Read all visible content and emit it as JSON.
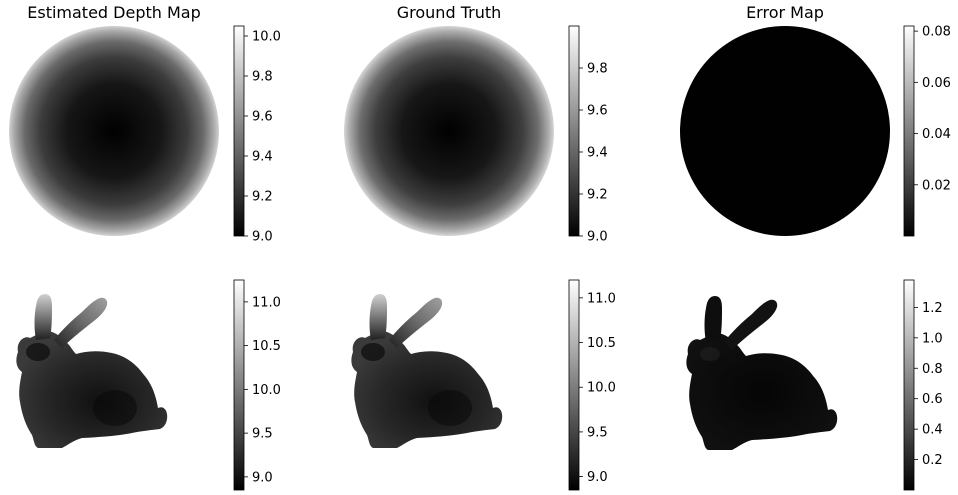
{
  "figure": {
    "colormap": "gray",
    "background": "#ffffff"
  },
  "chart_data": [
    {
      "type": "heatmap",
      "title": "Estimated Depth Map",
      "shape": "sphere",
      "colorbar": {
        "min": 9.0,
        "max": 10.05,
        "ticks": [
          9.0,
          9.2,
          9.4,
          9.6,
          9.8,
          10.0
        ],
        "tick_labels": [
          "9.0",
          "9.2",
          "9.4",
          "9.6",
          "9.8",
          "10.0"
        ]
      }
    },
    {
      "type": "heatmap",
      "title": "Ground Truth",
      "shape": "sphere",
      "colorbar": {
        "min": 9.0,
        "max": 10.0,
        "ticks": [
          9.0,
          9.2,
          9.4,
          9.6,
          9.8
        ],
        "tick_labels": [
          "9.0",
          "9.2",
          "9.4",
          "9.6",
          "9.8"
        ]
      }
    },
    {
      "type": "heatmap",
      "title": "Error Map",
      "shape": "sphere-error",
      "colorbar": {
        "min": 0.0,
        "max": 0.082,
        "ticks": [
          0.02,
          0.04,
          0.06,
          0.08
        ],
        "tick_labels": [
          "0.02",
          "0.04",
          "0.06",
          "0.08"
        ]
      }
    },
    {
      "type": "heatmap",
      "title": "",
      "shape": "bunny",
      "colorbar": {
        "min": 8.85,
        "max": 11.25,
        "ticks": [
          9.0,
          9.5,
          10.0,
          10.5,
          11.0
        ],
        "tick_labels": [
          "9.0",
          "9.5",
          "10.0",
          "10.5",
          "11.0"
        ]
      }
    },
    {
      "type": "heatmap",
      "title": "",
      "shape": "bunny",
      "colorbar": {
        "min": 8.85,
        "max": 11.2,
        "ticks": [
          9.0,
          9.5,
          10.0,
          10.5,
          11.0
        ],
        "tick_labels": [
          "9.0",
          "9.5",
          "10.0",
          "10.5",
          "11.0"
        ]
      }
    },
    {
      "type": "heatmap",
      "title": "",
      "shape": "bunny-error",
      "colorbar": {
        "min": 0.0,
        "max": 1.38,
        "ticks": [
          0.2,
          0.4,
          0.6,
          0.8,
          1.0,
          1.2
        ],
        "tick_labels": [
          "0.2",
          "0.4",
          "0.6",
          "0.8",
          "1.0",
          "1.2"
        ]
      }
    }
  ]
}
